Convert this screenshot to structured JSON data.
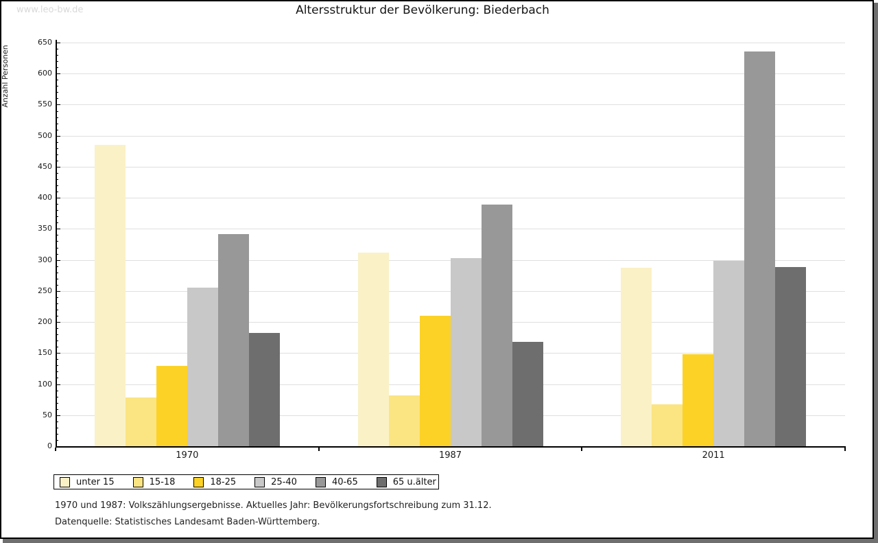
{
  "watermark": "www.leo-bw.de",
  "title": "Altersstruktur der Bevölkerung: Biederbach",
  "y_axis_label": "Anzahl Personen",
  "footnotes": {
    "line1": "1970 und 1987: Volkszählungsergebnisse. Aktuelles Jahr: Bevölkerungsfortschreibung zum 31.12.",
    "line2": "Datenquelle: Statistisches Landesamt Baden-Württemberg."
  },
  "chart_data": {
    "type": "bar",
    "title": "Altersstruktur der Bevölkerung: Biederbach",
    "xlabel": "",
    "ylabel": "Anzahl Personen",
    "categories": [
      "1970",
      "1987",
      "2011"
    ],
    "series": [
      {
        "name": "unter 15",
        "color": "#FAF1C6",
        "values": [
          485,
          312,
          288
        ]
      },
      {
        "name": "15-18",
        "color": "#FBE482",
        "values": [
          79,
          82,
          68
        ]
      },
      {
        "name": "18-25",
        "color": "#FCD226",
        "values": [
          129,
          210,
          148
        ]
      },
      {
        "name": "25-40",
        "color": "#C8C8C8",
        "values": [
          255,
          303,
          299
        ]
      },
      {
        "name": "40-65",
        "color": "#989898",
        "values": [
          342,
          389,
          636
        ]
      },
      {
        "name": "65 u.älter",
        "color": "#6E6E6E",
        "values": [
          183,
          168,
          289
        ]
      }
    ],
    "ylim": [
      0,
      650
    ],
    "ytick_step": 50,
    "y_minor_tick_step": 10,
    "grid": true,
    "grid_color": "#DFDFDF",
    "axis_color": "#000000",
    "legend_position": "bottom"
  }
}
